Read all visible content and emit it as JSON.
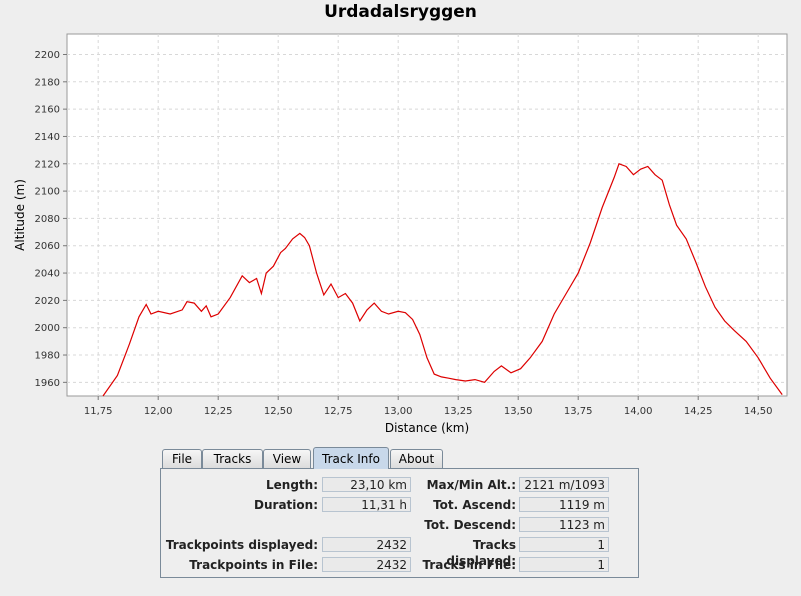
{
  "chart_data": {
    "type": "line",
    "title": "Urdadalsryggen",
    "xlabel": "Distance (km)",
    "ylabel": "Altitude (m)",
    "xlim": [
      11.62,
      14.62
    ],
    "ylim": [
      1950,
      2215
    ],
    "x_ticks": [
      "11,75",
      "12,00",
      "12,25",
      "12,50",
      "12,75",
      "13,00",
      "13,25",
      "13,50",
      "13,75",
      "14,00",
      "14,25",
      "14,50"
    ],
    "x_tick_values": [
      11.75,
      12.0,
      12.25,
      12.5,
      12.75,
      13.0,
      13.25,
      13.5,
      13.75,
      14.0,
      14.25,
      14.5
    ],
    "y_ticks": [
      "1960",
      "1980",
      "2000",
      "2020",
      "2040",
      "2060",
      "2080",
      "2100",
      "2120",
      "2140",
      "2160",
      "2180",
      "2200"
    ],
    "y_tick_values": [
      1960,
      1980,
      2000,
      2020,
      2040,
      2060,
      2080,
      2100,
      2120,
      2140,
      2160,
      2180,
      2200
    ],
    "grid": true,
    "line_color": "#dd0000",
    "series": [
      {
        "x": [
          11.77,
          11.83,
          11.88,
          11.92,
          11.95,
          11.97,
          12.0,
          12.05,
          12.1,
          12.12,
          12.15,
          12.18,
          12.2,
          12.22,
          12.25,
          12.3,
          12.35,
          12.38,
          12.41,
          12.43,
          12.45,
          12.48,
          12.51,
          12.53,
          12.56,
          12.59,
          12.61,
          12.63,
          12.66,
          12.69,
          12.72,
          12.75,
          12.78,
          12.81,
          12.84,
          12.87,
          12.9,
          12.93,
          12.96,
          13.0,
          13.03,
          13.06,
          13.09,
          13.12,
          13.15,
          13.18,
          13.21,
          13.24,
          13.28,
          13.32,
          13.36,
          13.4,
          13.43,
          13.47,
          13.51,
          13.55,
          13.6,
          13.65,
          13.7,
          13.75,
          13.8,
          13.85,
          13.9,
          13.92,
          13.95,
          13.98,
          14.01,
          14.04,
          14.07,
          14.1,
          14.13,
          14.16,
          14.2,
          14.24,
          14.28,
          14.32,
          14.36,
          14.4,
          14.45,
          14.5,
          14.55,
          14.6
        ],
        "y": [
          1950,
          1965,
          1988,
          2008,
          2017,
          2010,
          2012,
          2010,
          2013,
          2019,
          2018,
          2012,
          2016,
          2008,
          2010,
          2022,
          2038,
          2033,
          2036,
          2025,
          2040,
          2045,
          2055,
          2058,
          2065,
          2069,
          2066,
          2060,
          2040,
          2024,
          2032,
          2022,
          2025,
          2018,
          2005,
          2013,
          2018,
          2012,
          2010,
          2012,
          2011,
          2006,
          1995,
          1978,
          1966,
          1964,
          1963,
          1962,
          1961,
          1962,
          1960,
          1968,
          1972,
          1967,
          1970,
          1978,
          1990,
          2010,
          2025,
          2040,
          2062,
          2088,
          2110,
          2120,
          2118,
          2112,
          2116,
          2118,
          2112,
          2108,
          2090,
          2075,
          2065,
          2048,
          2030,
          2015,
          2005,
          1998,
          1990,
          1978,
          1963,
          1951
        ]
      }
    ]
  },
  "tabs": [
    {
      "label": "File"
    },
    {
      "label": "Tracks"
    },
    {
      "label": "View"
    },
    {
      "label": "Track Info"
    },
    {
      "label": "About"
    }
  ],
  "active_tab": "Track Info",
  "track_info": {
    "length_label": "Length:",
    "length_value": "23,10 km",
    "duration_label": "Duration:",
    "duration_value": "11,31 h",
    "trackpoints_displayed_label": "Trackpoints displayed:",
    "trackpoints_displayed_value": "2432",
    "trackpoints_in_file_label": "Trackpoints in File:",
    "trackpoints_in_file_value": "2432",
    "maxmin_alt_label": "Max/Min Alt.:",
    "maxmin_alt_value": "2121 m/1093 m",
    "tot_ascend_label": "Tot. Ascend:",
    "tot_ascend_value": "1119 m",
    "tot_descend_label": "Tot. Descend:",
    "tot_descend_value": "1123 m",
    "tracks_displayed_label": "Tracks displayed:",
    "tracks_displayed_value": "1",
    "tracks_in_file_label": "Tracks in File:",
    "tracks_in_file_value": "1"
  }
}
